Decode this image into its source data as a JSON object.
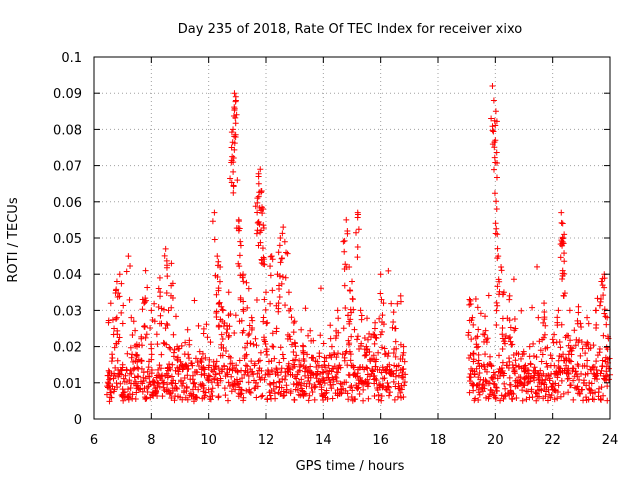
{
  "chart_data": {
    "type": "scatter",
    "title": "Day 235 of 2018, Rate Of TEC Index for receiver xixo",
    "xlabel": "GPS time / hours",
    "ylabel": "ROTI / TECUs",
    "xlim": [
      6,
      24
    ],
    "ylim": [
      0,
      0.1
    ],
    "xticks": [
      "6",
      "8",
      "10",
      "12",
      "14",
      "16",
      "18",
      "20",
      "22",
      "24"
    ],
    "yticks": [
      "0",
      "0.01",
      "0.02",
      "0.03",
      "0.04",
      "0.05",
      "0.06",
      "0.07",
      "0.08",
      "0.09",
      "0.1"
    ],
    "grid": true,
    "marker": "+",
    "series": [
      {
        "name": "ROTI",
        "color": "#ff0000",
        "points": [
          [
            6.5,
            0.012
          ],
          [
            6.7,
            0.025
          ],
          [
            6.8,
            0.038
          ],
          [
            6.9,
            0.04
          ],
          [
            7.0,
            0.015
          ],
          [
            7.2,
            0.045
          ],
          [
            7.3,
            0.028
          ],
          [
            7.5,
            0.02
          ],
          [
            7.7,
            0.033
          ],
          [
            7.8,
            0.041
          ],
          [
            8.0,
            0.03
          ],
          [
            8.2,
            0.012
          ],
          [
            8.3,
            0.039
          ],
          [
            8.5,
            0.047
          ],
          [
            8.6,
            0.03
          ],
          [
            8.7,
            0.043
          ],
          [
            8.9,
            0.02
          ],
          [
            9.2,
            0.015
          ],
          [
            9.5,
            0.01
          ],
          [
            9.8,
            0.018
          ],
          [
            10.0,
            0.012
          ],
          [
            10.2,
            0.057
          ],
          [
            10.3,
            0.045
          ],
          [
            10.4,
            0.042
          ],
          [
            10.5,
            0.03
          ],
          [
            10.7,
            0.035
          ],
          [
            10.8,
            0.075
          ],
          [
            10.85,
            0.08
          ],
          [
            10.9,
            0.09
          ],
          [
            10.95,
            0.088
          ],
          [
            11.0,
            0.066
          ],
          [
            11.05,
            0.055
          ],
          [
            11.1,
            0.049
          ],
          [
            11.2,
            0.04
          ],
          [
            11.4,
            0.036
          ],
          [
            11.5,
            0.028
          ],
          [
            11.7,
            0.061
          ],
          [
            11.75,
            0.065
          ],
          [
            11.8,
            0.069
          ],
          [
            11.85,
            0.063
          ],
          [
            11.9,
            0.058
          ],
          [
            12.0,
            0.035
          ],
          [
            12.2,
            0.045
          ],
          [
            12.4,
            0.04
          ],
          [
            12.5,
            0.05
          ],
          [
            12.6,
            0.053
          ],
          [
            12.7,
            0.046
          ],
          [
            12.8,
            0.035
          ],
          [
            13.0,
            0.027
          ],
          [
            13.3,
            0.02
          ],
          [
            13.6,
            0.017
          ],
          [
            14.0,
            0.013
          ],
          [
            14.3,
            0.02
          ],
          [
            14.5,
            0.03
          ],
          [
            14.7,
            0.049
          ],
          [
            14.8,
            0.055
          ],
          [
            14.9,
            0.042
          ],
          [
            15.0,
            0.038
          ],
          [
            15.2,
            0.057
          ],
          [
            15.3,
            0.03
          ],
          [
            15.5,
            0.02
          ],
          [
            15.8,
            0.025
          ],
          [
            16.0,
            0.04
          ],
          [
            16.1,
            0.032
          ],
          [
            16.3,
            0.015
          ],
          [
            16.5,
            0.025
          ],
          [
            16.7,
            0.034
          ],
          [
            16.8,
            0.02
          ],
          [
            19.1,
            0.033
          ],
          [
            19.2,
            0.028
          ],
          [
            19.4,
            0.02
          ],
          [
            19.6,
            0.015
          ],
          [
            19.9,
            0.092
          ],
          [
            19.95,
            0.088
          ],
          [
            20.0,
            0.077
          ],
          [
            20.02,
            0.085
          ],
          [
            20.05,
            0.058
          ],
          [
            20.1,
            0.045
          ],
          [
            20.2,
            0.042
          ],
          [
            20.3,
            0.035
          ],
          [
            20.5,
            0.034
          ],
          [
            20.7,
            0.025
          ],
          [
            21.0,
            0.018
          ],
          [
            21.2,
            0.02
          ],
          [
            21.5,
            0.028
          ],
          [
            21.7,
            0.032
          ],
          [
            22.0,
            0.022
          ],
          [
            22.2,
            0.03
          ],
          [
            22.3,
            0.057
          ],
          [
            22.35,
            0.054
          ],
          [
            22.4,
            0.051
          ],
          [
            22.6,
            0.03
          ],
          [
            22.9,
            0.031
          ],
          [
            23.2,
            0.028
          ],
          [
            23.5,
            0.03
          ],
          [
            23.7,
            0.038
          ],
          [
            23.8,
            0.04
          ],
          [
            23.9,
            0.028
          ]
        ],
        "baseline_spans": [
          {
            "start": 6.5,
            "end": 16.8
          },
          {
            "start": 19.1,
            "end": 24.0
          }
        ]
      }
    ]
  }
}
